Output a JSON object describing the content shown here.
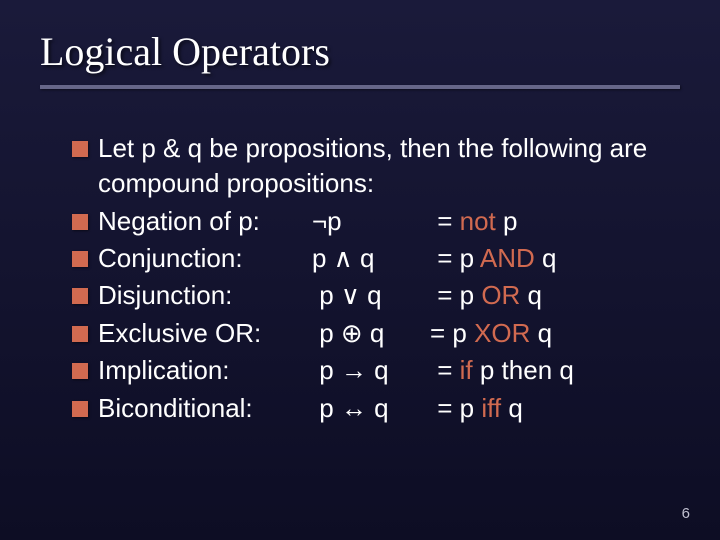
{
  "title": "Logical Operators",
  "intro": "Let p & q  be propositions, then the following are compound propositions:",
  "operators": [
    {
      "label": "Negation of p:",
      "symbol": "¬p",
      "prefix": " = ",
      "kw": "not",
      "suffix": " p"
    },
    {
      "label": "Conjunction:",
      "symbol": "p ∧ q",
      "prefix": " = p ",
      "kw": "AND",
      "suffix": " q"
    },
    {
      "label": "Disjunction:",
      "symbol": " p ∨ q",
      "prefix": " = p ",
      "kw": "OR",
      "suffix": " q"
    },
    {
      "label": "Exclusive OR:",
      "symbol": " p ⊕ q",
      "prefix": "= p ",
      "kw": "XOR",
      "suffix": " q"
    },
    {
      "label": "Implication:",
      "symbol": " p → q",
      "prefix": " = ",
      "kw": "if",
      "suffix": " p then q"
    },
    {
      "label": "Biconditional:",
      "symbol": " p ↔ q",
      "prefix": " = p ",
      "kw": "iff",
      "suffix": " q"
    }
  ],
  "page_number": "6",
  "colors": {
    "accent": "#d16a50",
    "bg_top": "#1a1a3a",
    "bg_bottom": "#0d0d24",
    "underline": "#666688",
    "text": "#ffffff"
  },
  "fonts": {
    "title_family": "Times New Roman",
    "title_size_pt": 30,
    "body_family": "Arial",
    "body_size_pt": 20
  }
}
